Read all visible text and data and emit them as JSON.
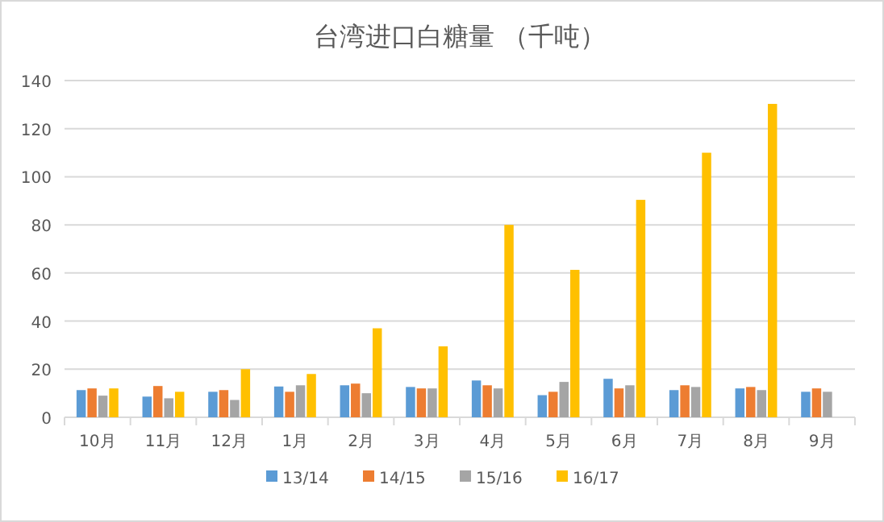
{
  "chart_data": {
    "type": "bar",
    "title": "台湾进口白糖量 （千吨）",
    "categories": [
      "10月",
      "11月",
      "12月",
      "1月",
      "2月",
      "3月",
      "4月",
      "5月",
      "6月",
      "7月",
      "8月",
      "9月"
    ],
    "series": [
      {
        "name": "13/14",
        "color": "#5b9bd5",
        "values": [
          11.3,
          8.6,
          10.6,
          12.8,
          13.3,
          12.6,
          15.3,
          9.2,
          16,
          11.3,
          12,
          10.6
        ]
      },
      {
        "name": "14/15",
        "color": "#ed7d31",
        "values": [
          12,
          13,
          11.3,
          10.6,
          14,
          12,
          13.3,
          10.6,
          12,
          13.3,
          12.6,
          12
        ]
      },
      {
        "name": "15/16",
        "color": "#a5a5a5",
        "values": [
          9,
          7.9,
          7.2,
          13.3,
          10,
          12,
          12,
          14.7,
          13.3,
          12.6,
          11.3,
          10.6
        ]
      },
      {
        "name": "16/17",
        "color": "#ffc000",
        "values": [
          12,
          10.6,
          20,
          18,
          37,
          29.5,
          80,
          61.3,
          90.4,
          110,
          130.3,
          null
        ]
      }
    ],
    "ylim": [
      0,
      140
    ],
    "yticks": [
      0,
      20,
      40,
      60,
      80,
      100,
      120,
      140
    ],
    "grid": "y",
    "legend": "bottom"
  }
}
